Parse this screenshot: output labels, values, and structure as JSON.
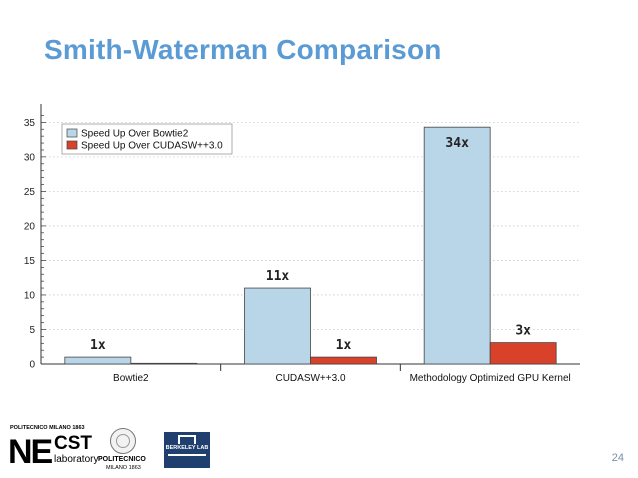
{
  "slide": {
    "title": "Smith-Waterman Comparison",
    "page_number": "24"
  },
  "chart_data": {
    "type": "bar",
    "categories": [
      "Bowtie2",
      "CUDASW++3.0",
      "Methodology Optimized GPU Kernel"
    ],
    "series": [
      {
        "name": "Speed Up Over Bowtie2",
        "color": "#b9d5e8",
        "values": [
          1,
          11,
          34.3
        ],
        "labels": [
          "1x",
          "11x",
          "34x"
        ]
      },
      {
        "name": "Speed Up Over CUDASW++3.0",
        "color": "#d9412b",
        "values": [
          0.1,
          1,
          3.1
        ],
        "labels": [
          "",
          "1x",
          "3x"
        ]
      }
    ],
    "yticks": [
      0,
      5,
      10,
      15,
      20,
      25,
      30,
      35
    ],
    "ylim": [
      0,
      36.5
    ],
    "legend_position": "top-left",
    "grid": true,
    "title": "",
    "xlabel": "",
    "ylabel": ""
  },
  "logos": {
    "necst_top": "POLITECNICO MILANO 1863",
    "necst_ne": "NE",
    "necst_cst": "CST",
    "necst_lab": "laboratory",
    "polimi_name": "POLITECNICO",
    "polimi_sub": "MILANO 1863",
    "berkeley": "BERKELEY LAB"
  }
}
